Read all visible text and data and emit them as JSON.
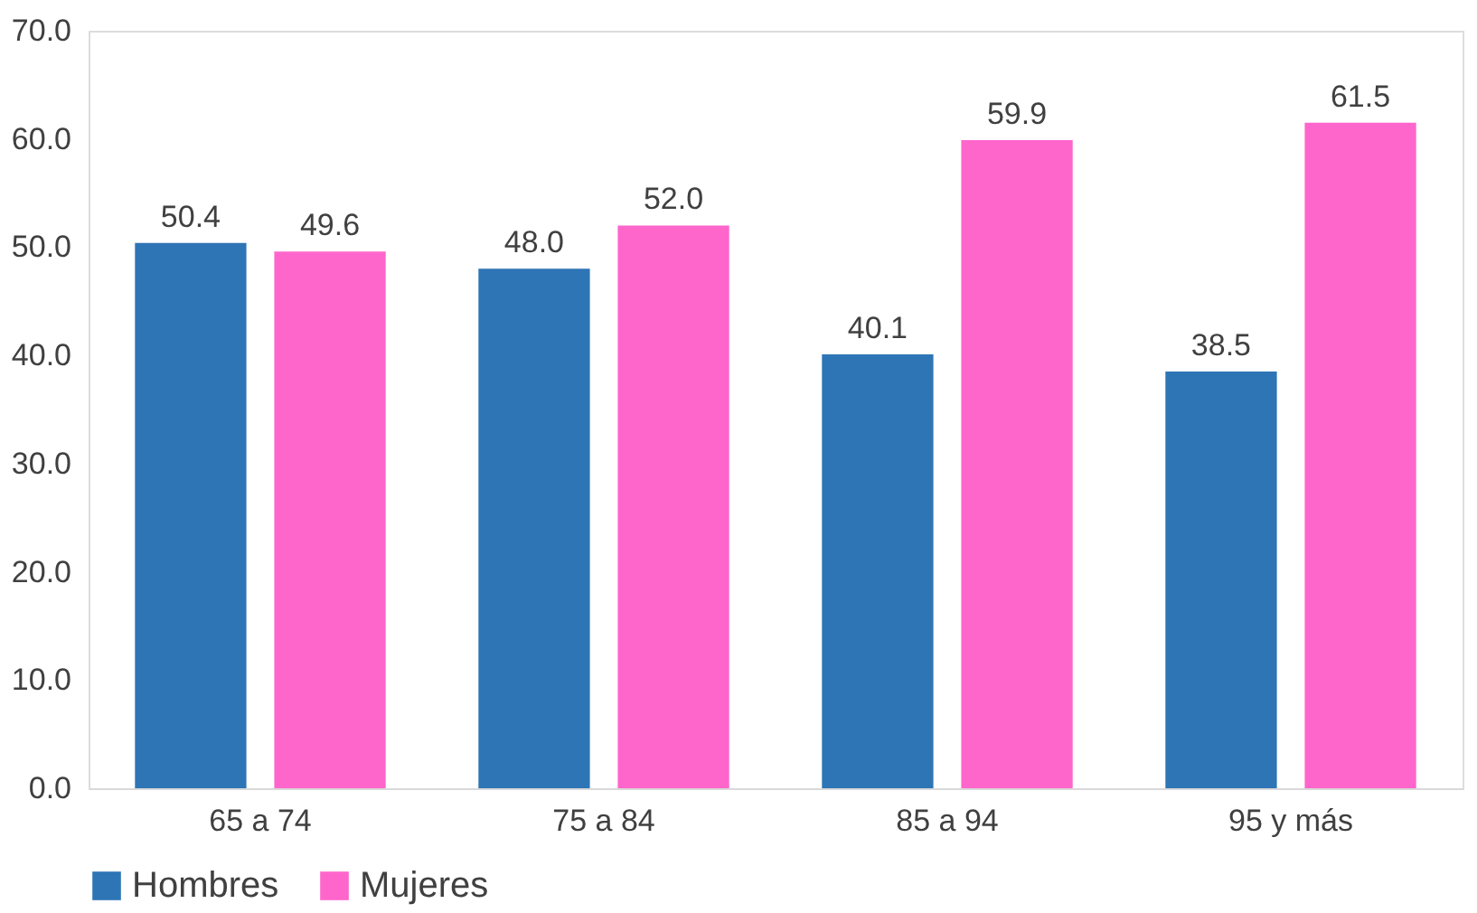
{
  "chart_data": {
    "type": "bar",
    "categories": [
      "65 a 74",
      "75 a 84",
      "85 a 94",
      "95 y más"
    ],
    "series": [
      {
        "name": "Hombres",
        "color": "#2e75b6",
        "values": [
          50.4,
          48.0,
          40.1,
          38.5
        ],
        "value_labels": [
          "50.4",
          "48.0",
          "40.1",
          "38.5"
        ]
      },
      {
        "name": "Mujeres",
        "color": "#ff66cc",
        "values": [
          49.6,
          52.0,
          59.9,
          61.5
        ],
        "value_labels": [
          "49.6",
          "52.0",
          "59.9",
          "61.5"
        ]
      }
    ],
    "ylim": [
      0,
      70
    ],
    "yticks": [
      {
        "value": 0,
        "label": "0.0"
      },
      {
        "value": 10,
        "label": "10.0"
      },
      {
        "value": 20,
        "label": "20.0"
      },
      {
        "value": 30,
        "label": "30.0"
      },
      {
        "value": 40,
        "label": "40.0"
      },
      {
        "value": 50,
        "label": "50.0"
      },
      {
        "value": 60,
        "label": "60.0"
      },
      {
        "value": 70,
        "label": "70.0"
      }
    ],
    "grid": false,
    "legend": "bottom"
  }
}
